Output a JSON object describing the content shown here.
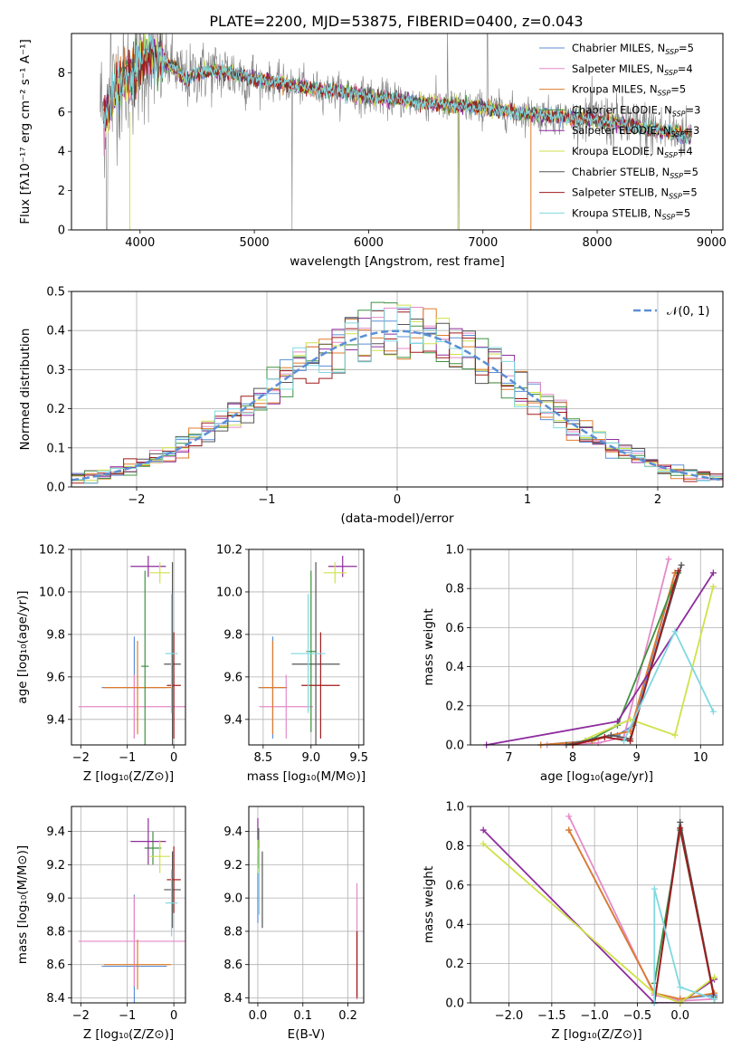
{
  "figure": {
    "title": "PLATE=2200, MJD=53875, FIBERID=0400, z=0.043"
  },
  "models": [
    {
      "name": "Chabrier MILES",
      "nssp": "5",
      "color": "#5b8fd6"
    },
    {
      "name": "Salpeter MILES",
      "nssp": "4",
      "color": "#e58ac8"
    },
    {
      "name": "Kroupa MILES",
      "nssp": "5",
      "color": "#e07b2b"
    },
    {
      "name": "Chabrier ELODIE",
      "nssp": "3",
      "color": "#3f9142"
    },
    {
      "name": "Salpeter ELODIE",
      "nssp": "3",
      "color": "#8e2d9e"
    },
    {
      "name": "Kroupa ELODIE",
      "nssp": "4",
      "color": "#cfe24a"
    },
    {
      "name": "Chabrier STELIB",
      "nssp": "5",
      "color": "#555555"
    },
    {
      "name": "Salpeter STELIB",
      "nssp": "5",
      "color": "#a11a1a"
    },
    {
      "name": "Kroupa STELIB",
      "nssp": "5",
      "color": "#7fd9e0"
    }
  ],
  "legend_nssp_label": "N",
  "legend_nssp_sub": "SSP",
  "chart_data": [
    {
      "id": "spectrum",
      "type": "line",
      "xlabel": "wavelength [Angstrom, rest frame]",
      "ylabel": "Flux [fλ10⁻¹⁷ erg cm⁻² s⁻¹ A⁻¹]",
      "xlim": [
        3400,
        9100
      ],
      "ylim": [
        0,
        10
      ],
      "xticks": [
        4000,
        5000,
        6000,
        7000,
        8000,
        9000
      ],
      "yticks": [
        0,
        2,
        4,
        6,
        8
      ],
      "grid": false,
      "legend": "right",
      "data_color": "#808080",
      "anchors_x": [
        3650,
        3700,
        3800,
        3900,
        4000,
        4100,
        4200,
        4300,
        4400,
        4500,
        4700,
        4850,
        5000,
        5200,
        5500,
        5800,
        6000,
        6300,
        6600,
        6800,
        7000,
        7300,
        7600,
        8000,
        8300,
        8600,
        8830
      ],
      "anchors_y": [
        6.5,
        5.8,
        7.5,
        7.8,
        8.4,
        8.9,
        8.6,
        8.3,
        7.6,
        8.0,
        8.1,
        7.9,
        7.7,
        7.5,
        7.2,
        7.0,
        6.8,
        6.6,
        6.4,
        6.3,
        6.2,
        6.0,
        5.8,
        5.6,
        5.3,
        5.0,
        4.8
      ]
    },
    {
      "id": "residuals",
      "type": "histogram",
      "xlabel": "(data-model)/error",
      "ylabel": "Normed distribution",
      "xlim": [
        -2.5,
        2.5
      ],
      "ylim": [
        0,
        0.5
      ],
      "xticks": [
        -2,
        -1,
        0,
        1,
        2
      ],
      "yticks": [
        0.0,
        0.1,
        0.2,
        0.3,
        0.4,
        0.5
      ],
      "grid": true,
      "bin_width": 0.1,
      "reference": {
        "name": "𝒩(0, 1)",
        "color": "#5b8fd6",
        "dashed": true
      },
      "legend": "top-right"
    },
    {
      "id": "age_vs_Z",
      "type": "errorbar",
      "xlabel": "Z [log₁₀(Z/Z⊙)]",
      "ylabel": "age  [log₁₀(age/yr)]",
      "xlim": [
        -2.2,
        0.25
      ],
      "ylim": [
        9.28,
        10.2
      ],
      "xticks": [
        -2,
        -1,
        0
      ],
      "yticks": [
        9.4,
        9.6,
        9.8,
        10.0,
        10.2
      ],
      "grid": true,
      "points": [
        {
          "model": 0,
          "x": -0.85,
          "xerr": 0.7,
          "y": 9.55,
          "yerr": 0.24
        },
        {
          "model": 1,
          "x": -0.85,
          "xerr": 1.2,
          "y": 9.46,
          "yerr": 0.15
        },
        {
          "model": 2,
          "x": -0.78,
          "xerr": 0.72,
          "y": 9.55,
          "yerr": 0.22
        },
        {
          "model": 3,
          "x": -0.62,
          "xerr": 0.08,
          "y": 9.65,
          "yerr": 0.45
        },
        {
          "model": 4,
          "x": -0.55,
          "xerr": 0.38,
          "y": 10.12,
          "yerr": 0.05
        },
        {
          "model": 5,
          "x": -0.3,
          "xerr": 0.22,
          "y": 10.09,
          "yerr": 0.05
        },
        {
          "model": 6,
          "x": -0.03,
          "xerr": 0.18,
          "y": 9.66,
          "yerr": 0.48
        },
        {
          "model": 7,
          "x": 0.0,
          "xerr": 0.15,
          "y": 9.56,
          "yerr": 0.25
        },
        {
          "model": 8,
          "x": -0.05,
          "xerr": 0.13,
          "y": 9.71,
          "yerr": 0.28
        }
      ]
    },
    {
      "id": "age_vs_mass",
      "type": "errorbar",
      "xlabel": "mass [log₁₀(M/M⊙)]",
      "ylabel": "",
      "xlim": [
        8.35,
        9.55
      ],
      "ylim": [
        9.28,
        10.2
      ],
      "xticks": [
        8.5,
        9.0,
        9.5
      ],
      "yticks": [
        9.4,
        9.6,
        9.8,
        10.0,
        10.2
      ],
      "grid": true,
      "points": [
        {
          "model": 0,
          "x": 8.6,
          "xerr": 0.15,
          "y": 9.55,
          "yerr": 0.24
        },
        {
          "model": 1,
          "x": 8.74,
          "xerr": 0.28,
          "y": 9.46,
          "yerr": 0.15
        },
        {
          "model": 2,
          "x": 8.6,
          "xerr": 0.14,
          "y": 9.55,
          "yerr": 0.22
        },
        {
          "model": 3,
          "x": 9.0,
          "xerr": 0.05,
          "y": 9.72,
          "yerr": 0.38
        },
        {
          "model": 4,
          "x": 9.33,
          "xerr": 0.15,
          "y": 10.12,
          "yerr": 0.05
        },
        {
          "model": 5,
          "x": 9.25,
          "xerr": 0.12,
          "y": 10.09,
          "yerr": 0.05
        },
        {
          "model": 6,
          "x": 9.05,
          "xerr": 0.25,
          "y": 9.66,
          "yerr": 0.48
        },
        {
          "model": 7,
          "x": 9.1,
          "xerr": 0.2,
          "y": 9.56,
          "yerr": 0.25
        },
        {
          "model": 8,
          "x": 8.97,
          "xerr": 0.18,
          "y": 9.71,
          "yerr": 0.28
        }
      ]
    },
    {
      "id": "massweight_vs_age",
      "type": "line",
      "xlabel": "age  [log₁₀(age/yr)]",
      "ylabel": "mass weight",
      "xlim": [
        6.4,
        10.35
      ],
      "ylim": [
        0.0,
        1.0
      ],
      "xticks": [
        7,
        8,
        9,
        10
      ],
      "yticks": [
        0.0,
        0.2,
        0.4,
        0.6,
        0.8,
        1.0
      ],
      "grid": true,
      "series": [
        {
          "model": 0,
          "x": [
            7.5,
            8.2,
            8.7,
            8.95,
            9.6
          ],
          "y": [
            0.0,
            0.02,
            0.05,
            0.1,
            0.88
          ]
        },
        {
          "model": 1,
          "x": [
            7.6,
            8.4,
            8.8,
            9.5
          ],
          "y": [
            0.0,
            0.01,
            0.04,
            0.95
          ]
        },
        {
          "model": 2,
          "x": [
            7.5,
            8.3,
            8.6,
            8.9,
            9.6
          ],
          "y": [
            0.0,
            0.02,
            0.05,
            0.07,
            0.88
          ]
        },
        {
          "model": 3,
          "x": [
            8.3,
            8.7,
            9.65
          ],
          "y": [
            0.03,
            0.1,
            0.88
          ]
        },
        {
          "model": 4,
          "x": [
            6.65,
            8.7,
            10.2
          ],
          "y": [
            0.0,
            0.12,
            0.88
          ]
        },
        {
          "model": 5,
          "x": [
            8.0,
            8.9,
            9.6,
            10.2
          ],
          "y": [
            0.0,
            0.13,
            0.05,
            0.81
          ]
        },
        {
          "model": 6,
          "x": [
            7.9,
            8.6,
            8.9,
            9.7
          ],
          "y": [
            0.0,
            0.05,
            0.03,
            0.92
          ]
        },
        {
          "model": 7,
          "x": [
            8.0,
            8.5,
            8.9,
            9.65
          ],
          "y": [
            0.0,
            0.04,
            0.02,
            0.89
          ]
        },
        {
          "model": 8,
          "x": [
            8.8,
            9.6,
            10.2
          ],
          "y": [
            0.02,
            0.58,
            0.17
          ]
        }
      ]
    },
    {
      "id": "mass_vs_Z",
      "type": "errorbar",
      "xlabel": "Z [log₁₀(Z/Z⊙)]",
      "ylabel": "mass [log₁₀(M/M⊙)]",
      "xlim": [
        -2.2,
        0.25
      ],
      "ylim": [
        8.37,
        9.55
      ],
      "xticks": [
        -2,
        -1,
        0
      ],
      "yticks": [
        8.4,
        8.6,
        8.8,
        9.0,
        9.2,
        9.4
      ],
      "grid": true,
      "points": [
        {
          "model": 0,
          "x": -0.85,
          "xerr": 0.7,
          "y": 8.59,
          "yerr": 0.43
        },
        {
          "model": 1,
          "x": -0.85,
          "xerr": 1.2,
          "y": 8.74,
          "yerr": 0.27
        },
        {
          "model": 2,
          "x": -0.78,
          "xerr": 0.72,
          "y": 8.6,
          "yerr": 0.15
        },
        {
          "model": 3,
          "x": -0.45,
          "xerr": 0.18,
          "y": 9.3,
          "yerr": 0.1
        },
        {
          "model": 4,
          "x": -0.55,
          "xerr": 0.38,
          "y": 9.34,
          "yerr": 0.14
        },
        {
          "model": 5,
          "x": -0.3,
          "xerr": 0.22,
          "y": 9.25,
          "yerr": 0.1
        },
        {
          "model": 6,
          "x": -0.03,
          "xerr": 0.18,
          "y": 9.05,
          "yerr": 0.23
        },
        {
          "model": 7,
          "x": 0.0,
          "xerr": 0.15,
          "y": 9.11,
          "yerr": 0.2
        },
        {
          "model": 8,
          "x": -0.05,
          "xerr": 0.13,
          "y": 8.97,
          "yerr": 0.2
        }
      ]
    },
    {
      "id": "mass_vs_ebv",
      "type": "errorbar",
      "xlabel": "E(B-V)",
      "ylabel": "",
      "xlim": [
        -0.02,
        0.235
      ],
      "ylim": [
        8.37,
        9.55
      ],
      "xticks": [
        0.0,
        0.1,
        0.2
      ],
      "yticks": [
        8.4,
        8.6,
        8.8,
        9.0,
        9.2,
        9.4
      ],
      "grid": true,
      "points": [
        {
          "model": 0,
          "x": 0.0,
          "xerr": 0.0,
          "y": 9.05,
          "yerr": 0.2
        },
        {
          "model": 1,
          "x": 0.22,
          "xerr": 0.0,
          "y": 8.74,
          "yerr": 0.35
        },
        {
          "model": 2,
          "x": 0.22,
          "xerr": 0.0,
          "y": 8.6,
          "yerr": 0.2
        },
        {
          "model": 3,
          "x": 0.002,
          "xerr": 0.0,
          "y": 9.3,
          "yerr": 0.12
        },
        {
          "model": 4,
          "x": 0.0,
          "xerr": 0.0,
          "y": 9.34,
          "yerr": 0.14
        },
        {
          "model": 5,
          "x": 0.0,
          "xerr": 0.0,
          "y": 9.25,
          "yerr": 0.1
        },
        {
          "model": 6,
          "x": 0.01,
          "xerr": 0.0,
          "y": 9.05,
          "yerr": 0.23
        },
        {
          "model": 7,
          "x": 0.22,
          "xerr": 0.0,
          "y": 8.6,
          "yerr": 0.2
        },
        {
          "model": 8,
          "x": 0.003,
          "xerr": 0.0,
          "y": 9.1,
          "yerr": 0.2
        }
      ]
    },
    {
      "id": "massweight_vs_Z",
      "type": "line",
      "xlabel": "Z [log₁₀(Z/Z⊙)]",
      "ylabel": "mass weight",
      "xlim": [
        -2.45,
        0.5
      ],
      "ylim": [
        0.0,
        1.0
      ],
      "xticks": [
        -2.0,
        -1.5,
        -1.0,
        -0.5,
        0.0
      ],
      "yticks": [
        0.0,
        0.2,
        0.4,
        0.6,
        0.8,
        1.0
      ],
      "grid": true,
      "series": [
        {
          "model": 0,
          "x": [
            -1.3,
            -0.3,
            0.0,
            0.4
          ],
          "y": [
            0.88,
            0.05,
            0.02,
            0.04
          ]
        },
        {
          "model": 1,
          "x": [
            -1.3,
            -0.3,
            0.0,
            0.4
          ],
          "y": [
            0.95,
            0.04,
            0.01,
            0.02
          ]
        },
        {
          "model": 2,
          "x": [
            -1.3,
            -0.3,
            0.0,
            0.4
          ],
          "y": [
            0.88,
            0.05,
            0.02,
            0.05
          ]
        },
        {
          "model": 3,
          "x": [
            -0.3,
            0.0,
            0.4
          ],
          "y": [
            0.1,
            0.88,
            0.03
          ]
        },
        {
          "model": 4,
          "x": [
            -2.3,
            -0.3,
            0.0,
            0.4
          ],
          "y": [
            0.88,
            0.0,
            0.0,
            0.12
          ]
        },
        {
          "model": 5,
          "x": [
            -2.3,
            -0.3,
            0.0,
            0.4
          ],
          "y": [
            0.81,
            0.05,
            0.0,
            0.13
          ]
        },
        {
          "model": 6,
          "x": [
            -0.3,
            0.0,
            0.4
          ],
          "y": [
            0.0,
            0.92,
            0.03
          ]
        },
        {
          "model": 7,
          "x": [
            -0.3,
            0.0,
            0.4
          ],
          "y": [
            0.0,
            0.89,
            0.02
          ]
        },
        {
          "model": 8,
          "x": [
            -0.3,
            -0.3,
            0.0,
            0.4
          ],
          "y": [
            0.0,
            0.58,
            0.08,
            0.02
          ]
        }
      ]
    }
  ]
}
